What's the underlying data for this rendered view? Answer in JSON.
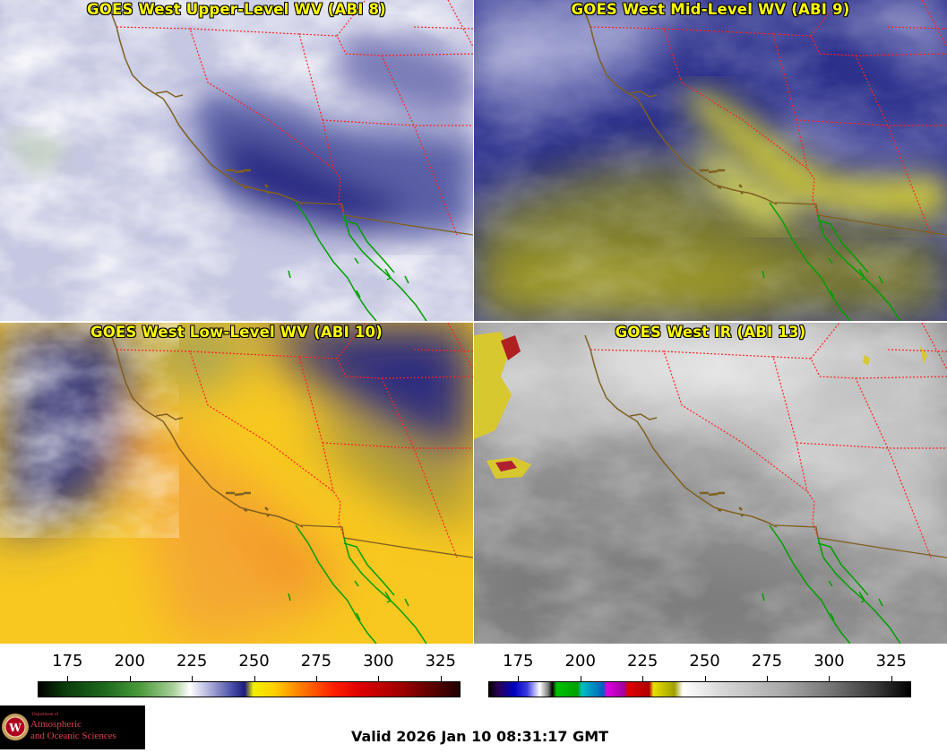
{
  "panels": [
    {
      "title": "GOES West Upper-Level WV (ABI 8)"
    },
    {
      "title": "GOES West Mid-Level WV (ABI 9)"
    },
    {
      "title": "GOES West Low-Level WV (ABI 10)"
    },
    {
      "title": "GOES West IR (ABI 13)"
    }
  ],
  "colorbars": {
    "wv": {
      "ticks": [
        "175",
        "200",
        "225",
        "250",
        "275",
        "300",
        "325"
      ],
      "tick_values": [
        175,
        200,
        225,
        250,
        275,
        300,
        325
      ],
      "range": [
        163,
        333
      ]
    },
    "ir": {
      "ticks": [
        "175",
        "200",
        "225",
        "250",
        "275",
        "300",
        "325"
      ],
      "tick_values": [
        175,
        200,
        225,
        250,
        275,
        300,
        325
      ],
      "range": [
        163,
        333
      ]
    }
  },
  "logo": {
    "line1": "Department of",
    "line2": "Atmospheric",
    "line3": "and Oceanic Sciences",
    "shield": "W"
  },
  "valid_text": "Valid 2026 Jan 10 08:31:17 GMT",
  "colors": {
    "title": "#ffff00",
    "state_border": "#ff2020",
    "coast": "#806020",
    "mexico_coast": "#00a000"
  }
}
